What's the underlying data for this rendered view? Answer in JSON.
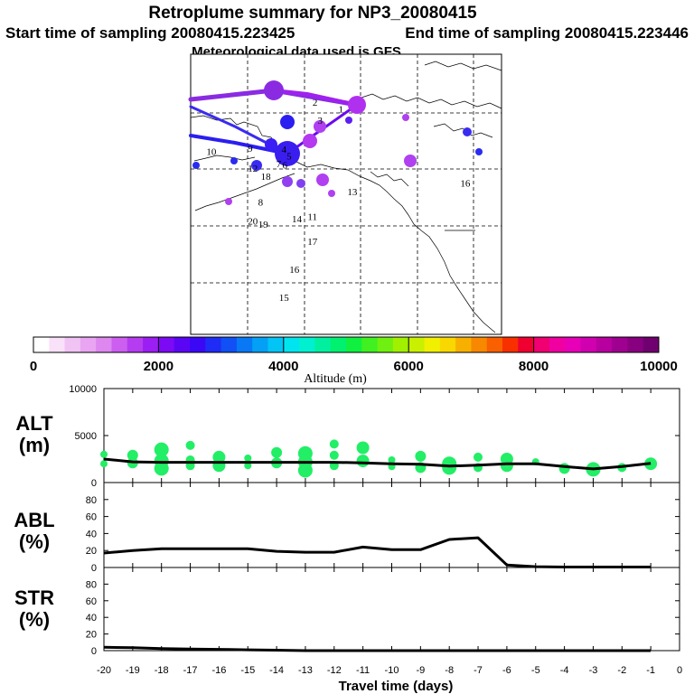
{
  "header": {
    "title": "Retroplume summary for NP3_20080415",
    "start": "Start time of sampling 20080415.223425",
    "end": "End time of sampling 20080415.223446",
    "met": "Meteorological data used is GFS"
  },
  "colorbar": {
    "label": "Altitude (m)",
    "ticks": [
      "0",
      "2000",
      "4000",
      "6000",
      "8000",
      "10000"
    ],
    "colors": [
      "#ffffff",
      "#f9e1f9",
      "#f1c3f5",
      "#e9a5f1",
      "#dd87ef",
      "#cc5ef0",
      "#b53cf0",
      "#9b1ef2",
      "#7d0af4",
      "#5b05f5",
      "#3b08f6",
      "#1f2cf5",
      "#1050f5",
      "#0878f5",
      "#04a0f5",
      "#02c4f5",
      "#00e4f0",
      "#00f0d0",
      "#00f0a0",
      "#00f070",
      "#10f040",
      "#40f020",
      "#70f010",
      "#a0f000",
      "#c8f000",
      "#f0f000",
      "#f8d800",
      "#f8b000",
      "#f88800",
      "#f86000",
      "#f83000",
      "#f00030",
      "#f00070",
      "#f000a0",
      "#e800b8",
      "#d000b0",
      "#b800a0",
      "#a00090",
      "#880080",
      "#700070"
    ]
  },
  "map": {
    "labels": [
      {
        "text": "1",
        "lon": -121.0,
        "lat": 56.8
      },
      {
        "text": "2",
        "lon": -126.0,
        "lat": 57.4
      },
      {
        "text": "3",
        "lon": -125.0,
        "lat": 55.8
      },
      {
        "text": "4",
        "lon": -132.0,
        "lat": 53.2
      },
      {
        "text": "5",
        "lon": -131.0,
        "lat": 52.6
      },
      {
        "text": "6",
        "lon": -131.8,
        "lat": 51.8
      },
      {
        "text": "7",
        "lon": -133.0,
        "lat": 51.9
      },
      {
        "text": "8",
        "lon": -136.5,
        "lat": 48.5
      },
      {
        "text": "9",
        "lon": -138.5,
        "lat": 53.3
      },
      {
        "text": "10",
        "lon": -146.0,
        "lat": 53.0
      },
      {
        "text": "11",
        "lon": -126.5,
        "lat": 47.2
      },
      {
        "text": "12",
        "lon": -138.0,
        "lat": 51.5
      },
      {
        "text": "13",
        "lon": -118.8,
        "lat": 49.4
      },
      {
        "text": "14",
        "lon": -129.5,
        "lat": 47.0
      },
      {
        "text": "15",
        "lon": -132.0,
        "lat": 40.0
      },
      {
        "text": "16",
        "lon": -130.0,
        "lat": 42.5
      },
      {
        "text": "16",
        "lon": -97.0,
        "lat": 50.2
      },
      {
        "text": "17",
        "lon": -126.5,
        "lat": 45.0
      },
      {
        "text": "18",
        "lon": -135.5,
        "lat": 50.8
      },
      {
        "text": "19",
        "lon": -136.0,
        "lat": 46.5
      },
      {
        "text": "20",
        "lon": -138.0,
        "lat": 46.8
      }
    ]
  },
  "panels": {
    "alt": {
      "label1": "ALT",
      "label2": "(m)",
      "ticks": [
        "0",
        "5000",
        "10000"
      ]
    },
    "abl": {
      "label1": "ABL",
      "label2": "(%)",
      "ticks": [
        "0",
        "20",
        "40",
        "60",
        "80"
      ]
    },
    "str": {
      "label1": "STR",
      "label2": "(%)",
      "ticks": [
        "0",
        "20",
        "40",
        "60",
        "80"
      ]
    },
    "xlabel": "Travel time (days)",
    "xticks": [
      "-20",
      "-19",
      "-18",
      "-17",
      "-16",
      "-15",
      "-14",
      "-13",
      "-12",
      "-11",
      "-10",
      "-9",
      "-8",
      "-7",
      "-6",
      "-5",
      "-4",
      "-3",
      "-2",
      "-1",
      "0"
    ]
  },
  "chart_data": {
    "type": "line",
    "title": "Retroplume summary for NP3_20080415",
    "xlabel": "Travel time (days)",
    "x": [
      -20,
      -19,
      -18,
      -17,
      -16,
      -15,
      -14,
      -13,
      -12,
      -11,
      -10,
      -9,
      -8,
      -7,
      -6,
      -5,
      -4,
      -3,
      -2,
      -1
    ],
    "xlim": [
      -20,
      0
    ],
    "series": [
      {
        "name": "ALT",
        "ylabel": "ALT (m)",
        "ylim": [
          0,
          10000
        ],
        "values": [
          2500,
          2200,
          2150,
          2150,
          2150,
          2150,
          2150,
          2150,
          2150,
          2100,
          2000,
          1950,
          1750,
          1850,
          2000,
          2000,
          1700,
          1450,
          1700,
          2050
        ]
      },
      {
        "name": "ABL",
        "ylabel": "ABL (%)",
        "ylim": [
          0,
          100
        ],
        "values": [
          17,
          20,
          22,
          22,
          22,
          22,
          19,
          18,
          18,
          24,
          21,
          21,
          33,
          35,
          3,
          1,
          0.5,
          0.5,
          0.5,
          0.5
        ]
      },
      {
        "name": "STR",
        "ylabel": "STR (%)",
        "ylim": [
          0,
          100
        ],
        "values": [
          4,
          3.5,
          2.5,
          2,
          1.5,
          1,
          0.5,
          0,
          0,
          0,
          0,
          0,
          0,
          0,
          0,
          0,
          0,
          0,
          0,
          0
        ]
      }
    ],
    "alt_scatter": [
      {
        "x": -20,
        "y": 3000
      },
      {
        "x": -20,
        "y": 2000
      },
      {
        "x": -19,
        "y": 2900
      },
      {
        "x": -19,
        "y": 2100
      },
      {
        "x": -18,
        "y": 3500
      },
      {
        "x": -18,
        "y": 2300
      },
      {
        "x": -18,
        "y": 1500
      },
      {
        "x": -17,
        "y": 3950
      },
      {
        "x": -17,
        "y": 2400
      },
      {
        "x": -17,
        "y": 1800
      },
      {
        "x": -16,
        "y": 2700
      },
      {
        "x": -16,
        "y": 1800
      },
      {
        "x": -15,
        "y": 2600
      },
      {
        "x": -15,
        "y": 1800
      },
      {
        "x": -14,
        "y": 3200
      },
      {
        "x": -14,
        "y": 2100
      },
      {
        "x": -13,
        "y": 3100
      },
      {
        "x": -13,
        "y": 2200
      },
      {
        "x": -13,
        "y": 1300
      },
      {
        "x": -12,
        "y": 4100
      },
      {
        "x": -12,
        "y": 2900
      },
      {
        "x": -12,
        "y": 1800
      },
      {
        "x": -11,
        "y": 3700
      },
      {
        "x": -11,
        "y": 2300
      },
      {
        "x": -10,
        "y": 2400
      },
      {
        "x": -10,
        "y": 1700
      },
      {
        "x": -9,
        "y": 2800
      },
      {
        "x": -9,
        "y": 1600
      },
      {
        "x": -8,
        "y": 1600
      },
      {
        "x": -8,
        "y": 2000
      },
      {
        "x": -7,
        "y": 2700
      },
      {
        "x": -7,
        "y": 1600
      },
      {
        "x": -6,
        "y": 2500
      },
      {
        "x": -6,
        "y": 1800
      },
      {
        "x": -5,
        "y": 2200
      },
      {
        "x": -4,
        "y": 1500
      },
      {
        "x": -3,
        "y": 1400
      },
      {
        "x": -2,
        "y": 1600
      },
      {
        "x": -1,
        "y": 2000
      }
    ]
  }
}
